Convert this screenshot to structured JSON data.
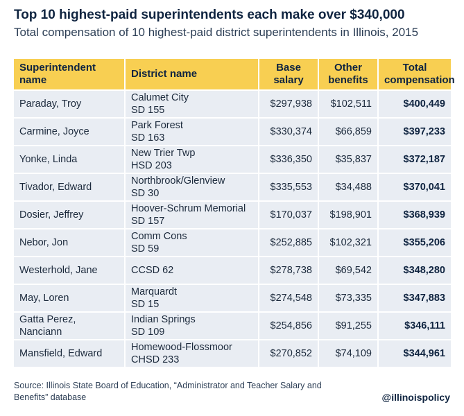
{
  "title": "Top 10 highest-paid superintendents each make over $340,000",
  "subtitle": "Total compensation of 10 highest-paid district superintendents in Illinois, 2015",
  "headers": {
    "name": "Superintendent name",
    "district": "District name",
    "base_line1": "Base",
    "base_line2": "salary",
    "other_line1": "Other",
    "other_line2": "benefits",
    "total_line1": "Total",
    "total_line2": "compensation"
  },
  "chart_data": {
    "type": "table",
    "title": "Top 10 highest-paid superintendents each make over $340,000",
    "subtitle": "Total compensation of 10 highest-paid district superintendents in Illinois, 2015",
    "columns": [
      "Superintendent name",
      "District name",
      "Base salary",
      "Other benefits",
      "Total compensation"
    ],
    "rows": [
      {
        "name": "Paraday, Troy",
        "district": [
          "Calumet City",
          "SD 155"
        ],
        "base": "$297,938",
        "other": "$102,511",
        "total": "$400,449"
      },
      {
        "name": "Carmine, Joyce",
        "district": [
          "Park Forest",
          "SD 163"
        ],
        "base": "$330,374",
        "other": "$66,859",
        "total": "$397,233"
      },
      {
        "name": "Yonke, Linda",
        "district": [
          "New Trier Twp",
          "HSD 203"
        ],
        "base": "$336,350",
        "other": "$35,837",
        "total": "$372,187"
      },
      {
        "name": "Tivador, Edward",
        "district": [
          "Northbrook/Glenview",
          "SD 30"
        ],
        "base": "$335,553",
        "other": "$34,488",
        "total": "$370,041"
      },
      {
        "name": "Dosier, Jeffrey",
        "district": [
          "Hoover-Schrum Memorial",
          "SD 157"
        ],
        "base": "$170,037",
        "other": "$198,901",
        "total": "$368,939"
      },
      {
        "name": "Nebor, Jon",
        "district": [
          "Comm Cons",
          "SD 59"
        ],
        "base": "$252,885",
        "other": "$102,321",
        "total": "$355,206"
      },
      {
        "name": "Westerhold, Jane",
        "district": [
          "CCSD 62"
        ],
        "base": "$278,738",
        "other": "$69,542",
        "total": "$348,280"
      },
      {
        "name": "May, Loren",
        "district": [
          "Marquardt",
          "SD 15"
        ],
        "base": "$274,548",
        "other": "$73,335",
        "total": "$347,883"
      },
      {
        "name": "Gatta Perez, Nanciann",
        "district": [
          "Indian Springs",
          "SD 109"
        ],
        "base": "$254,856",
        "other": "$91,255",
        "total": "$346,111"
      },
      {
        "name": "Mansfield, Edward",
        "district": [
          "Homewood-Flossmoor",
          "CHSD 233"
        ],
        "base": "$270,852",
        "other": "$74,109",
        "total": "$344,961"
      }
    ]
  },
  "source": "Source: Illinois State Board of Education, “Administrator and Teacher Salary and Benefits” database",
  "handle": "@illinoispolicy",
  "colors": {
    "header_bg": "#f8cf52",
    "row_bg": "#e9edf3",
    "text_dark": "#0f2440"
  }
}
